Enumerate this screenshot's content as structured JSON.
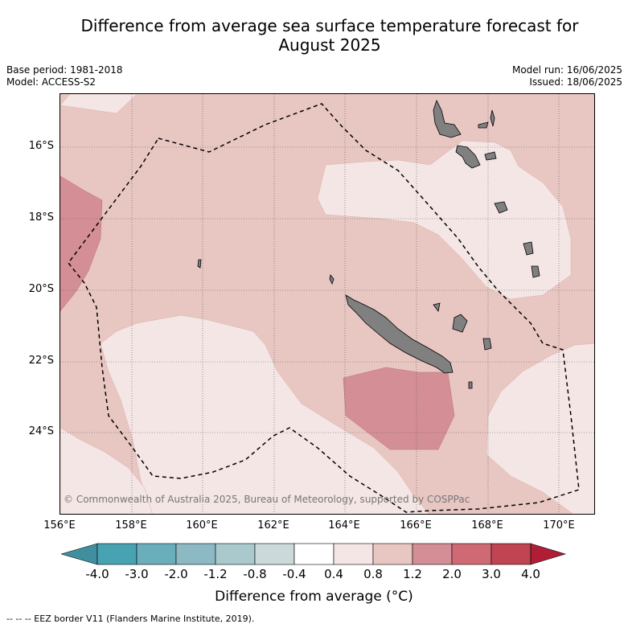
{
  "title_line1": "Difference from average sea surface temperature forecast for",
  "title_line2": "August 2025",
  "meta": {
    "base_period": "Base period: 1981-2018",
    "model": "Model: ACCESS-S2",
    "model_run": "Model run: 16/06/2025",
    "issued": "Issued: 18/06/2025"
  },
  "axes": {
    "lat_labels": [
      "16°S",
      "18°S",
      "20°S",
      "22°S",
      "24°S"
    ],
    "lon_labels": [
      "156°E",
      "158°E",
      "160°E",
      "162°E",
      "164°E",
      "166°E",
      "168°E",
      "170°E"
    ]
  },
  "copyright": "© Commonwealth of Australia 2025, Bureau of Meteorology, supported by COSPPac",
  "colorbar": {
    "ticks": [
      "-4.0",
      "-3.0",
      "-2.0",
      "-1.2",
      "-0.8",
      "-0.4",
      "0.4",
      "0.8",
      "1.2",
      "2.0",
      "3.0",
      "4.0"
    ],
    "colors": [
      "#3f8f9e",
      "#47a3b2",
      "#6aaebc",
      "#8db9c4",
      "#a9c9cd",
      "#ccd9db",
      "#ffffff",
      "#f4e6e4",
      "#e8c6c2",
      "#d48e96",
      "#cf6a75",
      "#c04451",
      "#b01e36"
    ],
    "label": "Difference from average (°C)"
  },
  "footnote": "--  --  -- EEZ border V11 (Flanders Marine Institute, 2019).",
  "map_colors": {
    "background": "#e8c6c2",
    "light": "#f4e6e4",
    "warm": "#d48e96",
    "land": "#808080",
    "grid": "#555555"
  }
}
